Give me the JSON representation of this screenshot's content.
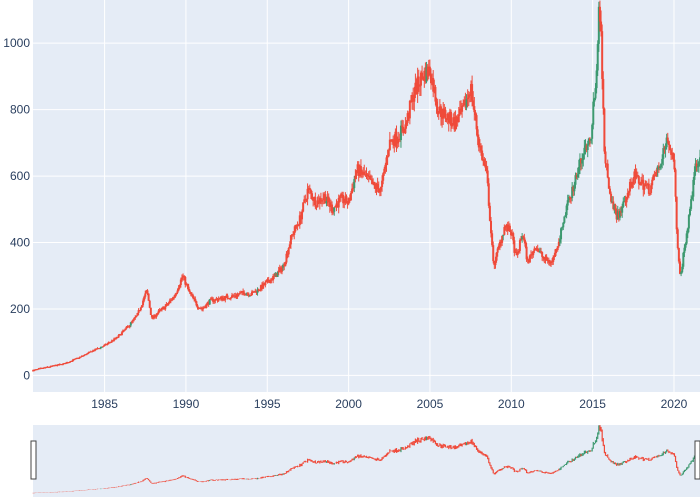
{
  "chart_data": {
    "type": "candlestick",
    "title": "",
    "xlabel": "",
    "ylabel": "",
    "xlim": [
      1980.6,
      2021.6
    ],
    "ylim": [
      -50,
      1130
    ],
    "x_ticks": [
      1985,
      1990,
      1995,
      2000,
      2005,
      2010,
      2015,
      2020
    ],
    "y_ticks": [
      0,
      200,
      400,
      600,
      800,
      1000
    ],
    "grid": true,
    "rangeslider": true,
    "colors": {
      "plot_background": "#e5ecf6",
      "grid": "#ffffff",
      "increasing": "#3d9970",
      "decreasing": "#ef4a3a",
      "tick_text": "#2a3f5f"
    },
    "series": [
      {
        "x": [
          1980.6,
          1981.5,
          1982.5,
          1983.5,
          1984.3,
          1985.0,
          1985.8,
          1986.5,
          1987.0,
          1987.6,
          1987.9,
          1988.3,
          1988.8,
          1989.3,
          1989.8,
          1990.2,
          1990.7,
          1991.0,
          1991.5,
          1992.0,
          1992.5,
          1993.0,
          1993.6,
          1994.0,
          1994.5,
          1995.0,
          1995.5,
          1996.0,
          1996.5,
          1997.0,
          1997.5,
          1998.0,
          1998.5,
          1999.0,
          1999.5,
          2000.0,
          2000.5,
          2001.0,
          2001.5,
          2002.0,
          2002.5,
          2003.0,
          2003.5,
          2004.0,
          2004.5,
          2005.0,
          2005.5,
          2006.0,
          2006.5,
          2007.0,
          2007.5,
          2008.0,
          2008.5,
          2008.9,
          2009.2,
          2009.6,
          2010.0,
          2010.3,
          2010.7,
          2011.0,
          2011.5,
          2012.0,
          2012.5,
          2013.0,
          2013.5,
          2014.0,
          2014.5,
          2014.9,
          2015.2,
          2015.4,
          2015.5,
          2015.7,
          2016.0,
          2016.5,
          2017.0,
          2017.5,
          2018.0,
          2018.5,
          2019.0,
          2019.5,
          2020.0,
          2020.2,
          2020.4,
          2020.7,
          2021.0,
          2021.3,
          2021.6
        ],
        "y": [
          15,
          25,
          35,
          55,
          75,
          90,
          115,
          150,
          180,
          255,
          170,
          190,
          210,
          240,
          300,
          250,
          210,
          200,
          225,
          230,
          235,
          240,
          250,
          245,
          260,
          280,
          300,
          330,
          420,
          470,
          560,
          520,
          540,
          500,
          530,
          520,
          620,
          600,
          570,
          560,
          700,
          720,
          750,
          850,
          900,
          920,
          800,
          780,
          760,
          790,
          870,
          700,
          600,
          330,
          380,
          450,
          430,
          350,
          430,
          340,
          390,
          350,
          340,
          420,
          520,
          600,
          680,
          730,
          900,
          1100,
          1080,
          700,
          550,
          480,
          520,
          600,
          580,
          560,
          620,
          700,
          660,
          400,
          300,
          400,
          500,
          620,
          640
        ]
      }
    ]
  }
}
